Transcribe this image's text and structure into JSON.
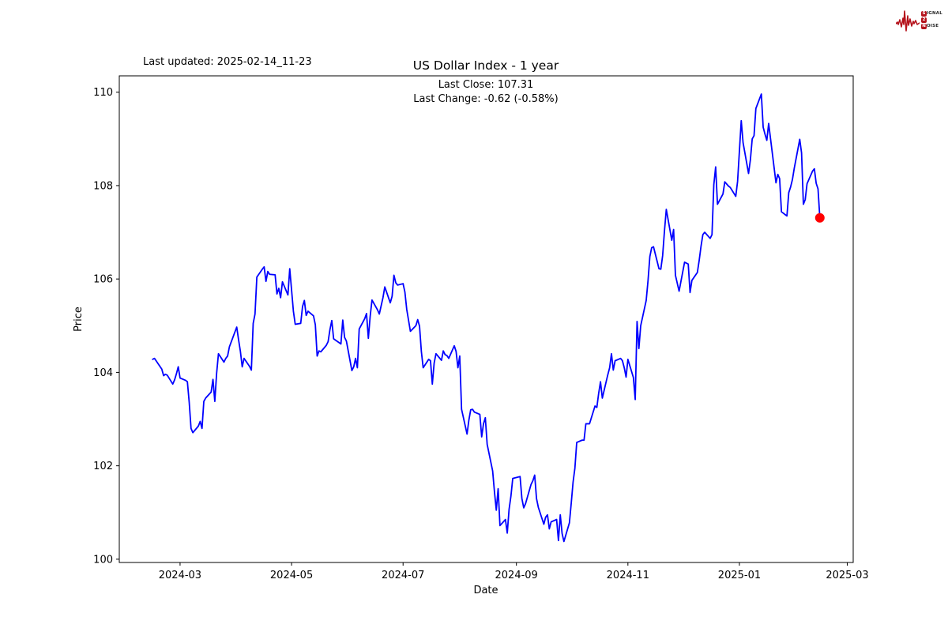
{
  "figure": {
    "last_updated": "Last updated: 2025-02-14_11-23",
    "background": "#ffffff"
  },
  "logo": {
    "name": "signal-2-noise",
    "color": "#b5121b",
    "line1_boxed": "S",
    "line1_rest": "IGNAL",
    "line2_boxed": "2",
    "line2_rest": "",
    "line3_boxed": "N",
    "line3_rest": "OISE"
  },
  "chart_data": {
    "type": "line",
    "title": "US Dollar Index - 1 year",
    "subtitle_lines": [
      "Last Close: 107.31",
      "Last Change: -0.62 (-0.58%)"
    ],
    "xlabel": "Date",
    "ylabel": "Price",
    "last_close": 107.31,
    "last_change": -0.62,
    "last_change_pct": "-0.58%",
    "grid": false,
    "legend": null,
    "line_color": "#0000ff",
    "marker_color": "#ff0000",
    "axis_color": "#000000",
    "ylim": [
      99.93,
      110.35
    ],
    "y_ticks": [
      100,
      102,
      104,
      106,
      108,
      110
    ],
    "x_ticks": [
      {
        "date": "2024-03-01",
        "label": "2024-03"
      },
      {
        "date": "2024-05-01",
        "label": "2024-05"
      },
      {
        "date": "2024-07-01",
        "label": "2024-07"
      },
      {
        "date": "2024-09-01",
        "label": "2024-09"
      },
      {
        "date": "2024-11-01",
        "label": "2024-11"
      },
      {
        "date": "2025-01-01",
        "label": "2025-01"
      },
      {
        "date": "2025-03-01",
        "label": "2025-03"
      }
    ],
    "x_range_dates": [
      "2024-02-15",
      "2025-02-14"
    ],
    "x_margin_days": 18.25,
    "last_point": {
      "date": "2025-02-14",
      "value": 107.31
    },
    "series": [
      {
        "name": "US Dollar Index",
        "points": [
          [
            "2024-02-15",
            104.28
          ],
          [
            "2024-02-16",
            104.3
          ],
          [
            "2024-02-20",
            104.07
          ],
          [
            "2024-02-21",
            103.93
          ],
          [
            "2024-02-22",
            103.96
          ],
          [
            "2024-02-23",
            103.94
          ],
          [
            "2024-02-26",
            103.75
          ],
          [
            "2024-02-27",
            103.84
          ],
          [
            "2024-02-28",
            103.97
          ],
          [
            "2024-02-29",
            104.12
          ],
          [
            "2024-03-01",
            103.88
          ],
          [
            "2024-03-04",
            103.83
          ],
          [
            "2024-03-05",
            103.8
          ],
          [
            "2024-03-06",
            103.36
          ],
          [
            "2024-03-07",
            102.8
          ],
          [
            "2024-03-08",
            102.71
          ],
          [
            "2024-03-11",
            102.85
          ],
          [
            "2024-03-12",
            102.95
          ],
          [
            "2024-03-13",
            102.8
          ],
          [
            "2024-03-14",
            103.38
          ],
          [
            "2024-03-15",
            103.45
          ],
          [
            "2024-03-18",
            103.58
          ],
          [
            "2024-03-19",
            103.85
          ],
          [
            "2024-03-20",
            103.38
          ],
          [
            "2024-03-21",
            103.98
          ],
          [
            "2024-03-22",
            104.4
          ],
          [
            "2024-03-25",
            104.22
          ],
          [
            "2024-03-26",
            104.3
          ],
          [
            "2024-03-27",
            104.35
          ],
          [
            "2024-03-28",
            104.55
          ],
          [
            "2024-04-01",
            104.97
          ],
          [
            "2024-04-02",
            104.7
          ],
          [
            "2024-04-03",
            104.45
          ],
          [
            "2024-04-04",
            104.12
          ],
          [
            "2024-04-05",
            104.3
          ],
          [
            "2024-04-08",
            104.13
          ],
          [
            "2024-04-09",
            104.05
          ],
          [
            "2024-04-10",
            105.05
          ],
          [
            "2024-04-11",
            105.25
          ],
          [
            "2024-04-12",
            106.04
          ],
          [
            "2024-04-15",
            106.21
          ],
          [
            "2024-04-16",
            106.26
          ],
          [
            "2024-04-17",
            105.95
          ],
          [
            "2024-04-18",
            106.16
          ],
          [
            "2024-04-19",
            106.1
          ],
          [
            "2024-04-22",
            106.09
          ],
          [
            "2024-04-23",
            105.68
          ],
          [
            "2024-04-24",
            105.8
          ],
          [
            "2024-04-25",
            105.6
          ],
          [
            "2024-04-26",
            105.94
          ],
          [
            "2024-04-29",
            105.66
          ],
          [
            "2024-04-30",
            106.22
          ],
          [
            "2024-05-02",
            105.31
          ],
          [
            "2024-05-03",
            105.03
          ],
          [
            "2024-05-06",
            105.05
          ],
          [
            "2024-05-07",
            105.41
          ],
          [
            "2024-05-08",
            105.54
          ],
          [
            "2024-05-09",
            105.22
          ],
          [
            "2024-05-10",
            105.31
          ],
          [
            "2024-05-13",
            105.21
          ],
          [
            "2024-05-14",
            105.02
          ],
          [
            "2024-05-15",
            104.35
          ],
          [
            "2024-05-16",
            104.46
          ],
          [
            "2024-05-17",
            104.44
          ],
          [
            "2024-05-20",
            104.58
          ],
          [
            "2024-05-21",
            104.66
          ],
          [
            "2024-05-22",
            104.92
          ],
          [
            "2024-05-23",
            105.11
          ],
          [
            "2024-05-24",
            104.72
          ],
          [
            "2024-05-28",
            104.61
          ],
          [
            "2024-05-29",
            105.12
          ],
          [
            "2024-05-30",
            104.75
          ],
          [
            "2024-05-31",
            104.67
          ],
          [
            "2024-06-03",
            104.04
          ],
          [
            "2024-06-04",
            104.12
          ],
          [
            "2024-06-05",
            104.3
          ],
          [
            "2024-06-06",
            104.1
          ],
          [
            "2024-06-07",
            104.93
          ],
          [
            "2024-06-10",
            105.15
          ],
          [
            "2024-06-11",
            105.26
          ],
          [
            "2024-06-12",
            104.73
          ],
          [
            "2024-06-13",
            105.2
          ],
          [
            "2024-06-14",
            105.55
          ],
          [
            "2024-06-17",
            105.34
          ],
          [
            "2024-06-18",
            105.25
          ],
          [
            "2024-06-20",
            105.6
          ],
          [
            "2024-06-21",
            105.83
          ],
          [
            "2024-06-24",
            105.49
          ],
          [
            "2024-06-25",
            105.63
          ],
          [
            "2024-06-26",
            106.08
          ],
          [
            "2024-06-27",
            105.92
          ],
          [
            "2024-06-28",
            105.87
          ],
          [
            "2024-07-01",
            105.9
          ],
          [
            "2024-07-02",
            105.72
          ],
          [
            "2024-07-03",
            105.35
          ],
          [
            "2024-07-05",
            104.88
          ],
          [
            "2024-07-08",
            105.0
          ],
          [
            "2024-07-09",
            105.13
          ],
          [
            "2024-07-10",
            104.99
          ],
          [
            "2024-07-11",
            104.45
          ],
          [
            "2024-07-12",
            104.1
          ],
          [
            "2024-07-15",
            104.28
          ],
          [
            "2024-07-16",
            104.25
          ],
          [
            "2024-07-17",
            103.75
          ],
          [
            "2024-07-18",
            104.2
          ],
          [
            "2024-07-19",
            104.4
          ],
          [
            "2024-07-22",
            104.26
          ],
          [
            "2024-07-23",
            104.46
          ],
          [
            "2024-07-24",
            104.38
          ],
          [
            "2024-07-25",
            104.36
          ],
          [
            "2024-07-26",
            104.3
          ],
          [
            "2024-07-29",
            104.57
          ],
          [
            "2024-07-30",
            104.45
          ],
          [
            "2024-07-31",
            104.1
          ],
          [
            "2024-08-01",
            104.35
          ],
          [
            "2024-08-02",
            103.21
          ],
          [
            "2024-08-05",
            102.68
          ],
          [
            "2024-08-06",
            102.98
          ],
          [
            "2024-08-07",
            103.2
          ],
          [
            "2024-08-08",
            103.21
          ],
          [
            "2024-08-09",
            103.15
          ],
          [
            "2024-08-12",
            103.1
          ],
          [
            "2024-08-13",
            102.62
          ],
          [
            "2024-08-14",
            102.9
          ],
          [
            "2024-08-15",
            103.03
          ],
          [
            "2024-08-16",
            102.46
          ],
          [
            "2024-08-19",
            101.89
          ],
          [
            "2024-08-20",
            101.44
          ],
          [
            "2024-08-21",
            101.05
          ],
          [
            "2024-08-22",
            101.51
          ],
          [
            "2024-08-23",
            100.72
          ],
          [
            "2024-08-26",
            100.85
          ],
          [
            "2024-08-27",
            100.56
          ],
          [
            "2024-08-28",
            101.07
          ],
          [
            "2024-08-29",
            101.35
          ],
          [
            "2024-08-30",
            101.73
          ],
          [
            "2024-09-03",
            101.77
          ],
          [
            "2024-09-04",
            101.3
          ],
          [
            "2024-09-05",
            101.1
          ],
          [
            "2024-09-06",
            101.19
          ],
          [
            "2024-09-09",
            101.6
          ],
          [
            "2024-09-10",
            101.68
          ],
          [
            "2024-09-11",
            101.8
          ],
          [
            "2024-09-12",
            101.3
          ],
          [
            "2024-09-13",
            101.11
          ],
          [
            "2024-09-16",
            100.75
          ],
          [
            "2024-09-17",
            100.9
          ],
          [
            "2024-09-18",
            100.95
          ],
          [
            "2024-09-19",
            100.65
          ],
          [
            "2024-09-20",
            100.8
          ],
          [
            "2024-09-23",
            100.85
          ],
          [
            "2024-09-24",
            100.4
          ],
          [
            "2024-09-25",
            100.95
          ],
          [
            "2024-09-26",
            100.55
          ],
          [
            "2024-09-27",
            100.38
          ],
          [
            "2024-09-30",
            100.78
          ],
          [
            "2024-10-01",
            101.2
          ],
          [
            "2024-10-02",
            101.65
          ],
          [
            "2024-10-03",
            101.95
          ],
          [
            "2024-10-04",
            102.5
          ],
          [
            "2024-10-07",
            102.55
          ],
          [
            "2024-10-08",
            102.55
          ],
          [
            "2024-10-09",
            102.9
          ],
          [
            "2024-10-10",
            102.9
          ],
          [
            "2024-10-11",
            102.9
          ],
          [
            "2024-10-14",
            103.28
          ],
          [
            "2024-10-15",
            103.25
          ],
          [
            "2024-10-16",
            103.55
          ],
          [
            "2024-10-17",
            103.8
          ],
          [
            "2024-10-18",
            103.45
          ],
          [
            "2024-10-21",
            103.95
          ],
          [
            "2024-10-22",
            104.1
          ],
          [
            "2024-10-23",
            104.4
          ],
          [
            "2024-10-24",
            104.05
          ],
          [
            "2024-10-25",
            104.25
          ],
          [
            "2024-10-28",
            104.3
          ],
          [
            "2024-10-29",
            104.25
          ],
          [
            "2024-10-30",
            104.1
          ],
          [
            "2024-10-31",
            103.9
          ],
          [
            "2024-11-01",
            104.28
          ],
          [
            "2024-11-04",
            103.89
          ],
          [
            "2024-11-05",
            103.42
          ],
          [
            "2024-11-06",
            105.09
          ],
          [
            "2024-11-07",
            104.51
          ],
          [
            "2024-11-08",
            105.0
          ],
          [
            "2024-11-11",
            105.54
          ],
          [
            "2024-11-12",
            105.96
          ],
          [
            "2024-11-13",
            106.48
          ],
          [
            "2024-11-14",
            106.67
          ],
          [
            "2024-11-15",
            106.69
          ],
          [
            "2024-11-18",
            106.22
          ],
          [
            "2024-11-19",
            106.21
          ],
          [
            "2024-11-20",
            106.5
          ],
          [
            "2024-11-21",
            107.03
          ],
          [
            "2024-11-22",
            107.49
          ],
          [
            "2024-11-25",
            106.83
          ],
          [
            "2024-11-26",
            107.06
          ],
          [
            "2024-11-27",
            106.08
          ],
          [
            "2024-11-29",
            105.74
          ],
          [
            "2024-12-02",
            106.36
          ],
          [
            "2024-12-03",
            106.34
          ],
          [
            "2024-12-04",
            106.32
          ],
          [
            "2024-12-05",
            105.71
          ],
          [
            "2024-12-06",
            105.97
          ],
          [
            "2024-12-09",
            106.14
          ],
          [
            "2024-12-10",
            106.4
          ],
          [
            "2024-12-11",
            106.7
          ],
          [
            "2024-12-12",
            106.95
          ],
          [
            "2024-12-13",
            107.0
          ],
          [
            "2024-12-16",
            106.87
          ],
          [
            "2024-12-17",
            106.95
          ],
          [
            "2024-12-18",
            108.02
          ],
          [
            "2024-12-19",
            108.4
          ],
          [
            "2024-12-20",
            107.6
          ],
          [
            "2024-12-23",
            107.82
          ],
          [
            "2024-12-24",
            108.08
          ],
          [
            "2024-12-26",
            107.99
          ],
          [
            "2024-12-27",
            107.96
          ],
          [
            "2024-12-30",
            107.77
          ],
          [
            "2024-12-31",
            108.09
          ],
          [
            "2025-01-02",
            109.39
          ],
          [
            "2025-01-03",
            108.92
          ],
          [
            "2025-01-06",
            108.26
          ],
          [
            "2025-01-07",
            108.55
          ],
          [
            "2025-01-08",
            109.0
          ],
          [
            "2025-01-09",
            109.07
          ],
          [
            "2025-01-10",
            109.65
          ],
          [
            "2025-01-13",
            109.96
          ],
          [
            "2025-01-14",
            109.25
          ],
          [
            "2025-01-15",
            109.1
          ],
          [
            "2025-01-16",
            108.97
          ],
          [
            "2025-01-17",
            109.33
          ],
          [
            "2025-01-21",
            108.06
          ],
          [
            "2025-01-22",
            108.24
          ],
          [
            "2025-01-23",
            108.15
          ],
          [
            "2025-01-24",
            107.44
          ],
          [
            "2025-01-27",
            107.35
          ],
          [
            "2025-01-28",
            107.85
          ],
          [
            "2025-01-29",
            107.97
          ],
          [
            "2025-01-30",
            108.13
          ],
          [
            "2025-01-31",
            108.37
          ],
          [
            "2025-02-03",
            108.99
          ],
          [
            "2025-02-04",
            108.7
          ],
          [
            "2025-02-05",
            107.6
          ],
          [
            "2025-02-06",
            107.7
          ],
          [
            "2025-02-07",
            108.04
          ],
          [
            "2025-02-10",
            108.31
          ],
          [
            "2025-02-11",
            108.36
          ],
          [
            "2025-02-12",
            108.05
          ],
          [
            "2025-02-13",
            107.93
          ],
          [
            "2025-02-14",
            107.31
          ]
        ]
      }
    ]
  }
}
